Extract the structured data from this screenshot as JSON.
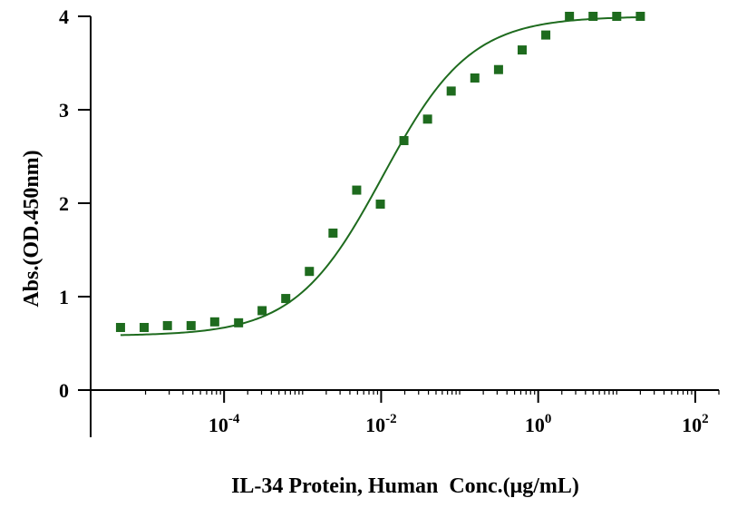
{
  "chart_data": {
    "type": "scatter",
    "title": "",
    "xlabel": "IL-34 Protein, Human  Conc.(μg/mL)",
    "ylabel": "Abs.(OD.450nm)",
    "x_scale": "log10",
    "xlim": [
      2e-06,
      200
    ],
    "ylim": [
      0,
      4
    ],
    "grid": false,
    "legend": "none",
    "colors": {
      "marker": "#1e6b1e",
      "curve": "#1e6b1e",
      "axis": "#000000"
    },
    "x_ticks": [
      {
        "base": "10",
        "exp": "-4",
        "value": 0.0001
      },
      {
        "base": "10",
        "exp": "-2",
        "value": 0.01
      },
      {
        "base": "10",
        "exp": "0",
        "value": 1
      },
      {
        "base": "10",
        "exp": "2",
        "value": 100
      }
    ],
    "y_ticks": [
      "0",
      "1",
      "2",
      "3",
      "4"
    ],
    "series": [
      {
        "points": [
          {
            "x": 4.8e-06,
            "y": 0.67
          },
          {
            "x": 9.6e-06,
            "y": 0.67
          },
          {
            "x": 1.9e-05,
            "y": 0.69
          },
          {
            "x": 3.8e-05,
            "y": 0.69
          },
          {
            "x": 7.6e-05,
            "y": 0.73
          },
          {
            "x": 0.000153,
            "y": 0.72
          },
          {
            "x": 0.000305,
            "y": 0.85
          },
          {
            "x": 0.00061,
            "y": 0.98
          },
          {
            "x": 0.00122,
            "y": 1.27
          },
          {
            "x": 0.00244,
            "y": 1.68
          },
          {
            "x": 0.00488,
            "y": 2.14
          },
          {
            "x": 0.00977,
            "y": 1.99
          },
          {
            "x": 0.0195,
            "y": 2.67
          },
          {
            "x": 0.039,
            "y": 2.9
          },
          {
            "x": 0.078,
            "y": 3.2
          },
          {
            "x": 0.156,
            "y": 3.34
          },
          {
            "x": 0.3125,
            "y": 3.43
          },
          {
            "x": 0.625,
            "y": 3.64
          },
          {
            "x": 1.25,
            "y": 3.8
          },
          {
            "x": 2.5,
            "y": 4.0
          },
          {
            "x": 5,
            "y": 4.0
          },
          {
            "x": 10,
            "y": 4.0
          },
          {
            "x": 20,
            "y": 4.0
          }
        ]
      }
    ],
    "fit_curve": {
      "model": "4PL",
      "bottom": 0.58,
      "top": 4.0,
      "ec50": 0.0105,
      "hill": 0.78
    }
  }
}
